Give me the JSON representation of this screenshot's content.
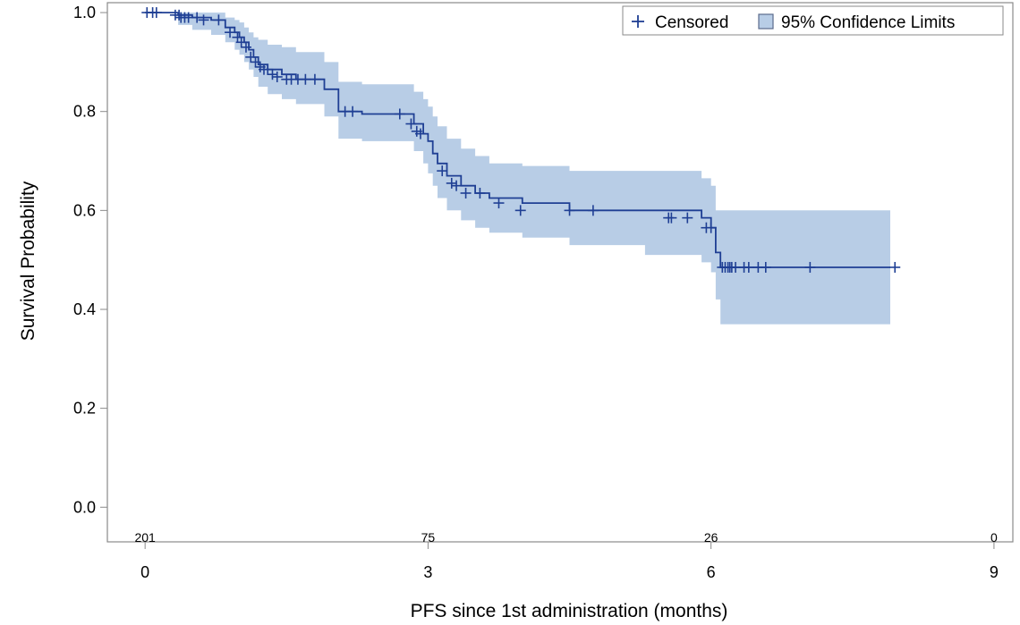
{
  "chart_data": {
    "type": "line",
    "xlabel": "PFS since 1st administration (months)",
    "ylabel": "Survival Probability",
    "xlim": [
      -0.4,
      9.2
    ],
    "ylim": [
      -0.07,
      1.02
    ],
    "xticks": [
      0,
      3,
      6,
      9
    ],
    "xtick_labels": [
      "0",
      "3",
      "6",
      "9"
    ],
    "yticks": [
      0.0,
      0.2,
      0.4,
      0.6,
      0.8,
      1.0
    ],
    "ytick_labels": [
      "0.0",
      "0.2",
      "0.4",
      "0.6",
      "0.8",
      "1.0"
    ],
    "grid": false,
    "legend": {
      "placement": "top-right",
      "entries": [
        {
          "label": "Censored",
          "marker": "plus"
        },
        {
          "label": "95% Confidence Limits",
          "marker": "band"
        }
      ]
    },
    "colors": {
      "line": "#1f3f94",
      "band": "#b8cde6",
      "band_edge": "#5b6b8c"
    },
    "number_at_risk": {
      "x": [
        0,
        3,
        6,
        9
      ],
      "labels": [
        "201",
        "75",
        "26",
        "0"
      ]
    },
    "survival_step": {
      "x": [
        0,
        0.35,
        0.5,
        0.7,
        0.85,
        0.95,
        1.0,
        1.05,
        1.1,
        1.15,
        1.2,
        1.3,
        1.45,
        1.6,
        1.9,
        2.05,
        2.3,
        2.85,
        2.95,
        3.0,
        3.05,
        3.1,
        3.2,
        3.35,
        3.5,
        3.65,
        4.0,
        4.5,
        5.3,
        5.9,
        6.0,
        6.05,
        6.1,
        7.9
      ],
      "y": [
        1.0,
        0.995,
        0.99,
        0.985,
        0.97,
        0.96,
        0.95,
        0.94,
        0.925,
        0.91,
        0.895,
        0.885,
        0.875,
        0.865,
        0.845,
        0.8,
        0.795,
        0.775,
        0.755,
        0.74,
        0.715,
        0.695,
        0.67,
        0.65,
        0.635,
        0.625,
        0.615,
        0.6,
        0.6,
        0.585,
        0.565,
        0.515,
        0.485,
        0.485
      ]
    },
    "confidence_upper": [
      1.0,
      1.0,
      1.0,
      1.0,
      0.99,
      0.985,
      0.98,
      0.97,
      0.96,
      0.95,
      0.945,
      0.935,
      0.93,
      0.92,
      0.9,
      0.86,
      0.855,
      0.84,
      0.825,
      0.81,
      0.79,
      0.77,
      0.745,
      0.725,
      0.71,
      0.695,
      0.69,
      0.68,
      0.68,
      0.665,
      0.65,
      0.6,
      0.6,
      0.6
    ],
    "confidence_lower": [
      1.0,
      0.975,
      0.965,
      0.955,
      0.94,
      0.925,
      0.915,
      0.9,
      0.885,
      0.87,
      0.85,
      0.835,
      0.825,
      0.815,
      0.79,
      0.745,
      0.74,
      0.72,
      0.695,
      0.675,
      0.65,
      0.625,
      0.6,
      0.58,
      0.565,
      0.555,
      0.545,
      0.53,
      0.51,
      0.495,
      0.475,
      0.42,
      0.37,
      0.37
    ],
    "censored_points": {
      "x": [
        0.02,
        0.08,
        0.12,
        0.32,
        0.36,
        0.38,
        0.42,
        0.46,
        0.55,
        0.62,
        0.78,
        0.9,
        0.98,
        1.02,
        1.07,
        1.12,
        1.17,
        1.22,
        1.26,
        1.3,
        1.35,
        1.4,
        1.5,
        1.55,
        1.62,
        1.7,
        1.8,
        2.12,
        2.2,
        2.7,
        2.82,
        2.88,
        2.92,
        3.15,
        3.25,
        3.3,
        3.4,
        3.55,
        3.75,
        3.98,
        4.5,
        4.75,
        5.55,
        5.58,
        5.75,
        5.95,
        6.0,
        6.12,
        6.15,
        6.18,
        6.2,
        6.22,
        6.26,
        6.35,
        6.4,
        6.5,
        6.58,
        7.05,
        7.95
      ],
      "y": [
        1.0,
        1.0,
        1.0,
        0.995,
        0.995,
        0.99,
        0.99,
        0.99,
        0.99,
        0.985,
        0.985,
        0.96,
        0.95,
        0.94,
        0.93,
        0.91,
        0.9,
        0.89,
        0.885,
        0.885,
        0.875,
        0.87,
        0.865,
        0.865,
        0.865,
        0.865,
        0.865,
        0.8,
        0.8,
        0.795,
        0.775,
        0.76,
        0.755,
        0.68,
        0.655,
        0.65,
        0.635,
        0.635,
        0.615,
        0.6,
        0.6,
        0.6,
        0.585,
        0.585,
        0.585,
        0.565,
        0.565,
        0.485,
        0.485,
        0.485,
        0.485,
        0.485,
        0.485,
        0.485,
        0.485,
        0.485,
        0.485,
        0.485,
        0.485
      ]
    }
  }
}
